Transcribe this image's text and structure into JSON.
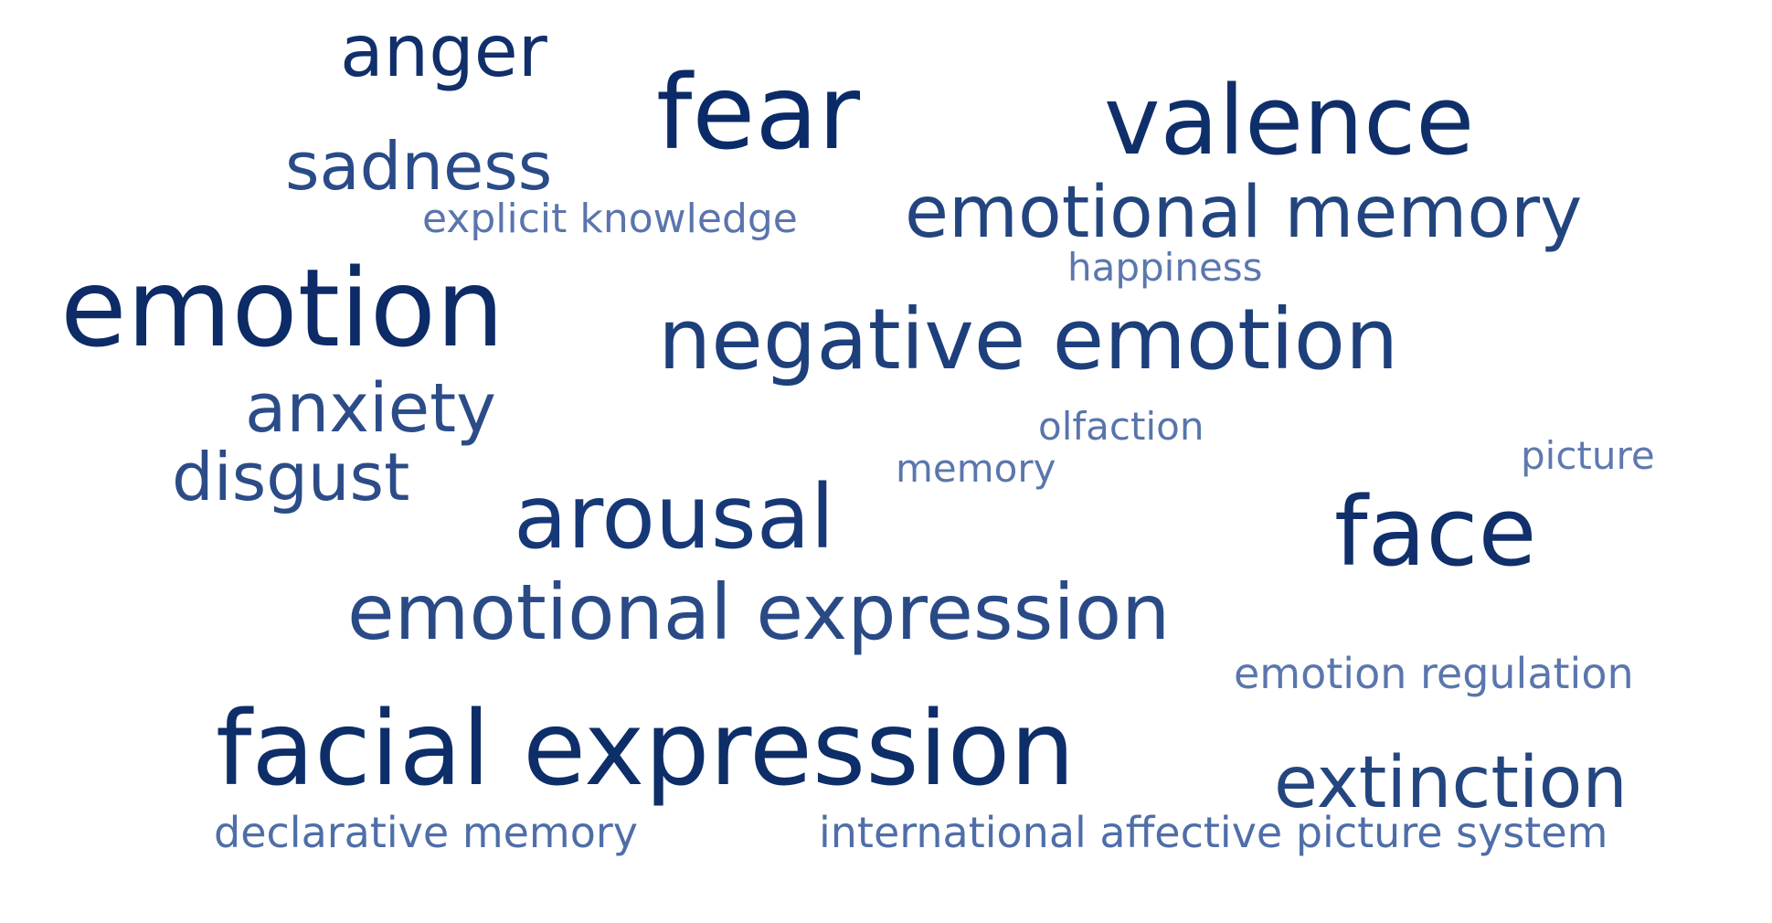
{
  "word_cloud": {
    "words": {
      "anger": "anger",
      "fear": "fear",
      "valence": "valence",
      "sadness": "sadness",
      "explicit_knowledge": "explicit knowledge",
      "emotional_memory": "emotional memory",
      "happiness": "happiness",
      "emotion": "emotion",
      "negative_emotion": "negative emotion",
      "anxiety": "anxiety",
      "olfaction": "olfaction",
      "memory": "memory",
      "picture": "picture",
      "disgust": "disgust",
      "arousal": "arousal",
      "face": "face",
      "emotional_expression": "emotional expression",
      "emotion_regulation": "emotion regulation",
      "facial_expression": "facial expression",
      "extinction": "extinction",
      "declarative_memory": "declarative memory",
      "international_affective_picture_system": "international affective picture system"
    },
    "colors": {
      "background": "#ffffff",
      "darkest": "#0b2b68",
      "dark": "#173877",
      "medium": "#2a4a86",
      "light": "#5a76ad"
    }
  }
}
